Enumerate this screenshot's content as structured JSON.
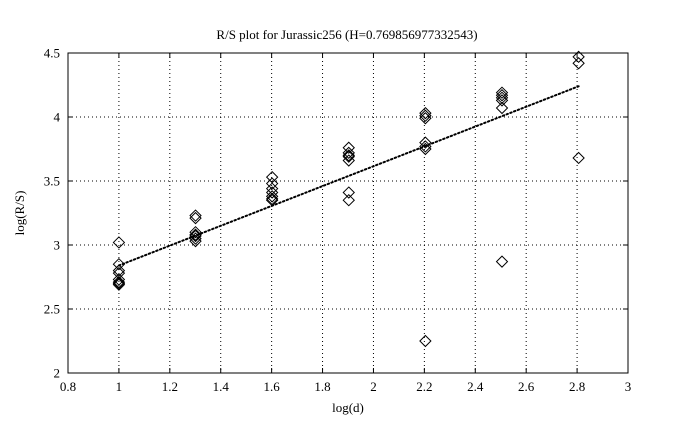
{
  "chart_data": {
    "type": "scatter",
    "title": "R/S plot for Jurassic256 (H=0.769856977332543)",
    "xlabel": "log(d)",
    "ylabel": "log(R/S)",
    "xlim": [
      0.8,
      3
    ],
    "ylim": [
      2,
      4.5
    ],
    "xticks": [
      "0.8",
      "1",
      "1.2",
      "1.4",
      "1.6",
      "1.8",
      "2",
      "2.2",
      "2.4",
      "2.6",
      "2.8",
      "3"
    ],
    "yticks": [
      "2",
      "2.5",
      "3",
      "3.5",
      "4",
      "4.5"
    ],
    "grid": true,
    "series": [
      {
        "marker": "diamond",
        "x": [
          1.0,
          1.0,
          1.0,
          1.0,
          1.0,
          1.0,
          1.0,
          1.0,
          1.301,
          1.301,
          1.301,
          1.301,
          1.301,
          1.301,
          1.301,
          1.602,
          1.602,
          1.602,
          1.602,
          1.602,
          1.602,
          1.602,
          1.903,
          1.903,
          1.903,
          1.903,
          1.903,
          1.903,
          1.903,
          2.204,
          2.204,
          2.204,
          2.204,
          2.204,
          2.204,
          2.204,
          2.505,
          2.505,
          2.505,
          2.505,
          2.505,
          2.505,
          2.806,
          2.806,
          2.806
        ],
        "y": [
          3.02,
          2.85,
          2.8,
          2.78,
          2.73,
          2.71,
          2.7,
          2.69,
          3.23,
          3.21,
          3.1,
          3.08,
          3.07,
          3.05,
          3.03,
          3.53,
          3.48,
          3.44,
          3.41,
          3.38,
          3.36,
          3.35,
          3.76,
          3.72,
          3.69,
          3.66,
          3.41,
          3.35,
          3.7,
          4.03,
          4.01,
          3.99,
          3.8,
          3.77,
          3.75,
          2.25,
          4.19,
          4.17,
          4.15,
          4.13,
          4.07,
          2.87,
          4.47,
          4.42,
          3.68
        ]
      }
    ],
    "fit_line": {
      "style": "dotted",
      "x": [
        1.0,
        2.806
      ],
      "y": [
        2.84,
        4.24
      ]
    }
  }
}
